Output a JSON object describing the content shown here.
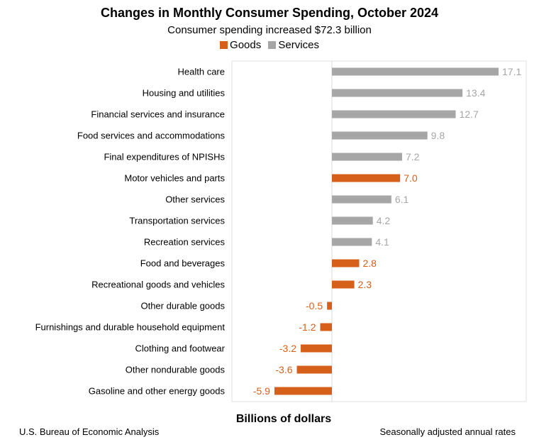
{
  "title": "Changes in Monthly Consumer Spending, October 2024",
  "subtitle": "Consumer spending increased $72.3 billion",
  "footer": {
    "source": "U.S. Bureau of Economic Analysis",
    "note": "Seasonally adjusted annual rates"
  },
  "colors": {
    "goods": "#d65f19",
    "services": "#a6a6a6"
  },
  "chart_data": {
    "type": "bar",
    "orientation": "horizontal",
    "title": "Changes in Monthly Consumer Spending, October 2024",
    "subtitle": "Consumer spending increased $72.3 billion",
    "xlabel": "Billions of dollars",
    "ylabel": "",
    "xlim": [
      -8,
      20
    ],
    "grid": false,
    "legend": {
      "position": "top",
      "entries": [
        {
          "name": "Goods",
          "color": "#d65f19"
        },
        {
          "name": "Services",
          "color": "#a6a6a6"
        }
      ]
    },
    "bars": [
      {
        "label": "Health care",
        "value": 17.1,
        "display": "17.1",
        "group": "Services"
      },
      {
        "label": "Housing and utilities",
        "value": 13.4,
        "display": "13.4",
        "group": "Services"
      },
      {
        "label": "Financial services and insurance",
        "value": 12.7,
        "display": "12.7",
        "group": "Services"
      },
      {
        "label": "Food services and accommodations",
        "value": 9.8,
        "display": "9.8",
        "group": "Services"
      },
      {
        "label": "Final expenditures of NPISHs",
        "value": 7.2,
        "display": "7.2",
        "group": "Services"
      },
      {
        "label": "Motor vehicles and parts",
        "value": 7.0,
        "display": "7.0",
        "group": "Goods"
      },
      {
        "label": "Other services",
        "value": 6.1,
        "display": "6.1",
        "group": "Services"
      },
      {
        "label": "Transportation services",
        "value": 4.2,
        "display": "4.2",
        "group": "Services"
      },
      {
        "label": "Recreation services",
        "value": 4.1,
        "display": "4.1",
        "group": "Services"
      },
      {
        "label": "Food and beverages",
        "value": 2.8,
        "display": "2.8",
        "group": "Goods"
      },
      {
        "label": "Recreational goods and vehicles",
        "value": 2.3,
        "display": "2.3",
        "group": "Goods"
      },
      {
        "label": "Other durable goods",
        "value": -0.5,
        "display": "-0.5",
        "group": "Goods"
      },
      {
        "label": "Furnishings and durable household equipment",
        "value": -1.2,
        "display": "-1.2",
        "group": "Goods"
      },
      {
        "label": "Clothing and footwear",
        "value": -3.2,
        "display": "-3.2",
        "group": "Goods"
      },
      {
        "label": "Other nondurable goods",
        "value": -3.6,
        "display": "-3.6",
        "group": "Goods"
      },
      {
        "label": "Gasoline and other energy goods",
        "value": -5.9,
        "display": "-5.9",
        "group": "Goods"
      }
    ]
  }
}
